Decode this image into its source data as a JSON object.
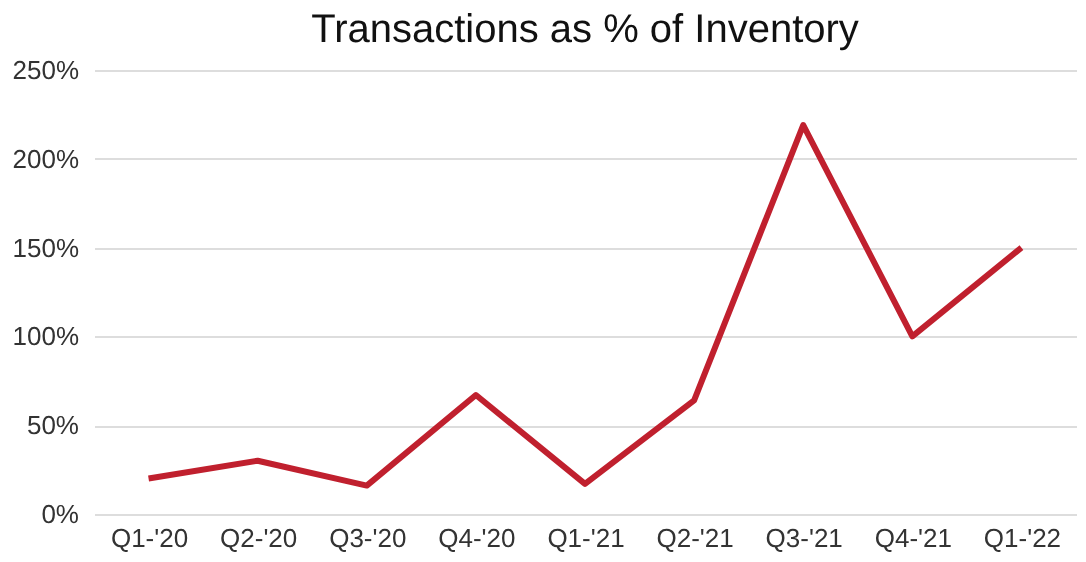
{
  "chart_data": {
    "type": "line",
    "title": "Transactions as % of Inventory",
    "categories": [
      "Q1-'20",
      "Q2-'20",
      "Q3-'20",
      "Q4-'20",
      "Q1-'21",
      "Q2-'21",
      "Q3-'21",
      "Q4-'21",
      "Q1-'22"
    ],
    "series": [
      {
        "color": "#c0202e",
        "values": [
          20,
          30,
          16,
          67,
          17,
          64,
          219,
          100,
          150
        ]
      }
    ],
    "ylim": [
      0,
      250
    ],
    "yticks": [
      {
        "value": 0,
        "label": "0%"
      },
      {
        "value": 50,
        "label": "50%"
      },
      {
        "value": 100,
        "label": "100%"
      },
      {
        "value": 150,
        "label": "150%"
      },
      {
        "value": 200,
        "label": "200%"
      },
      {
        "value": 250,
        "label": "250%"
      }
    ],
    "grid": "y",
    "legend": false,
    "marker": "none",
    "line_style": "solid"
  }
}
